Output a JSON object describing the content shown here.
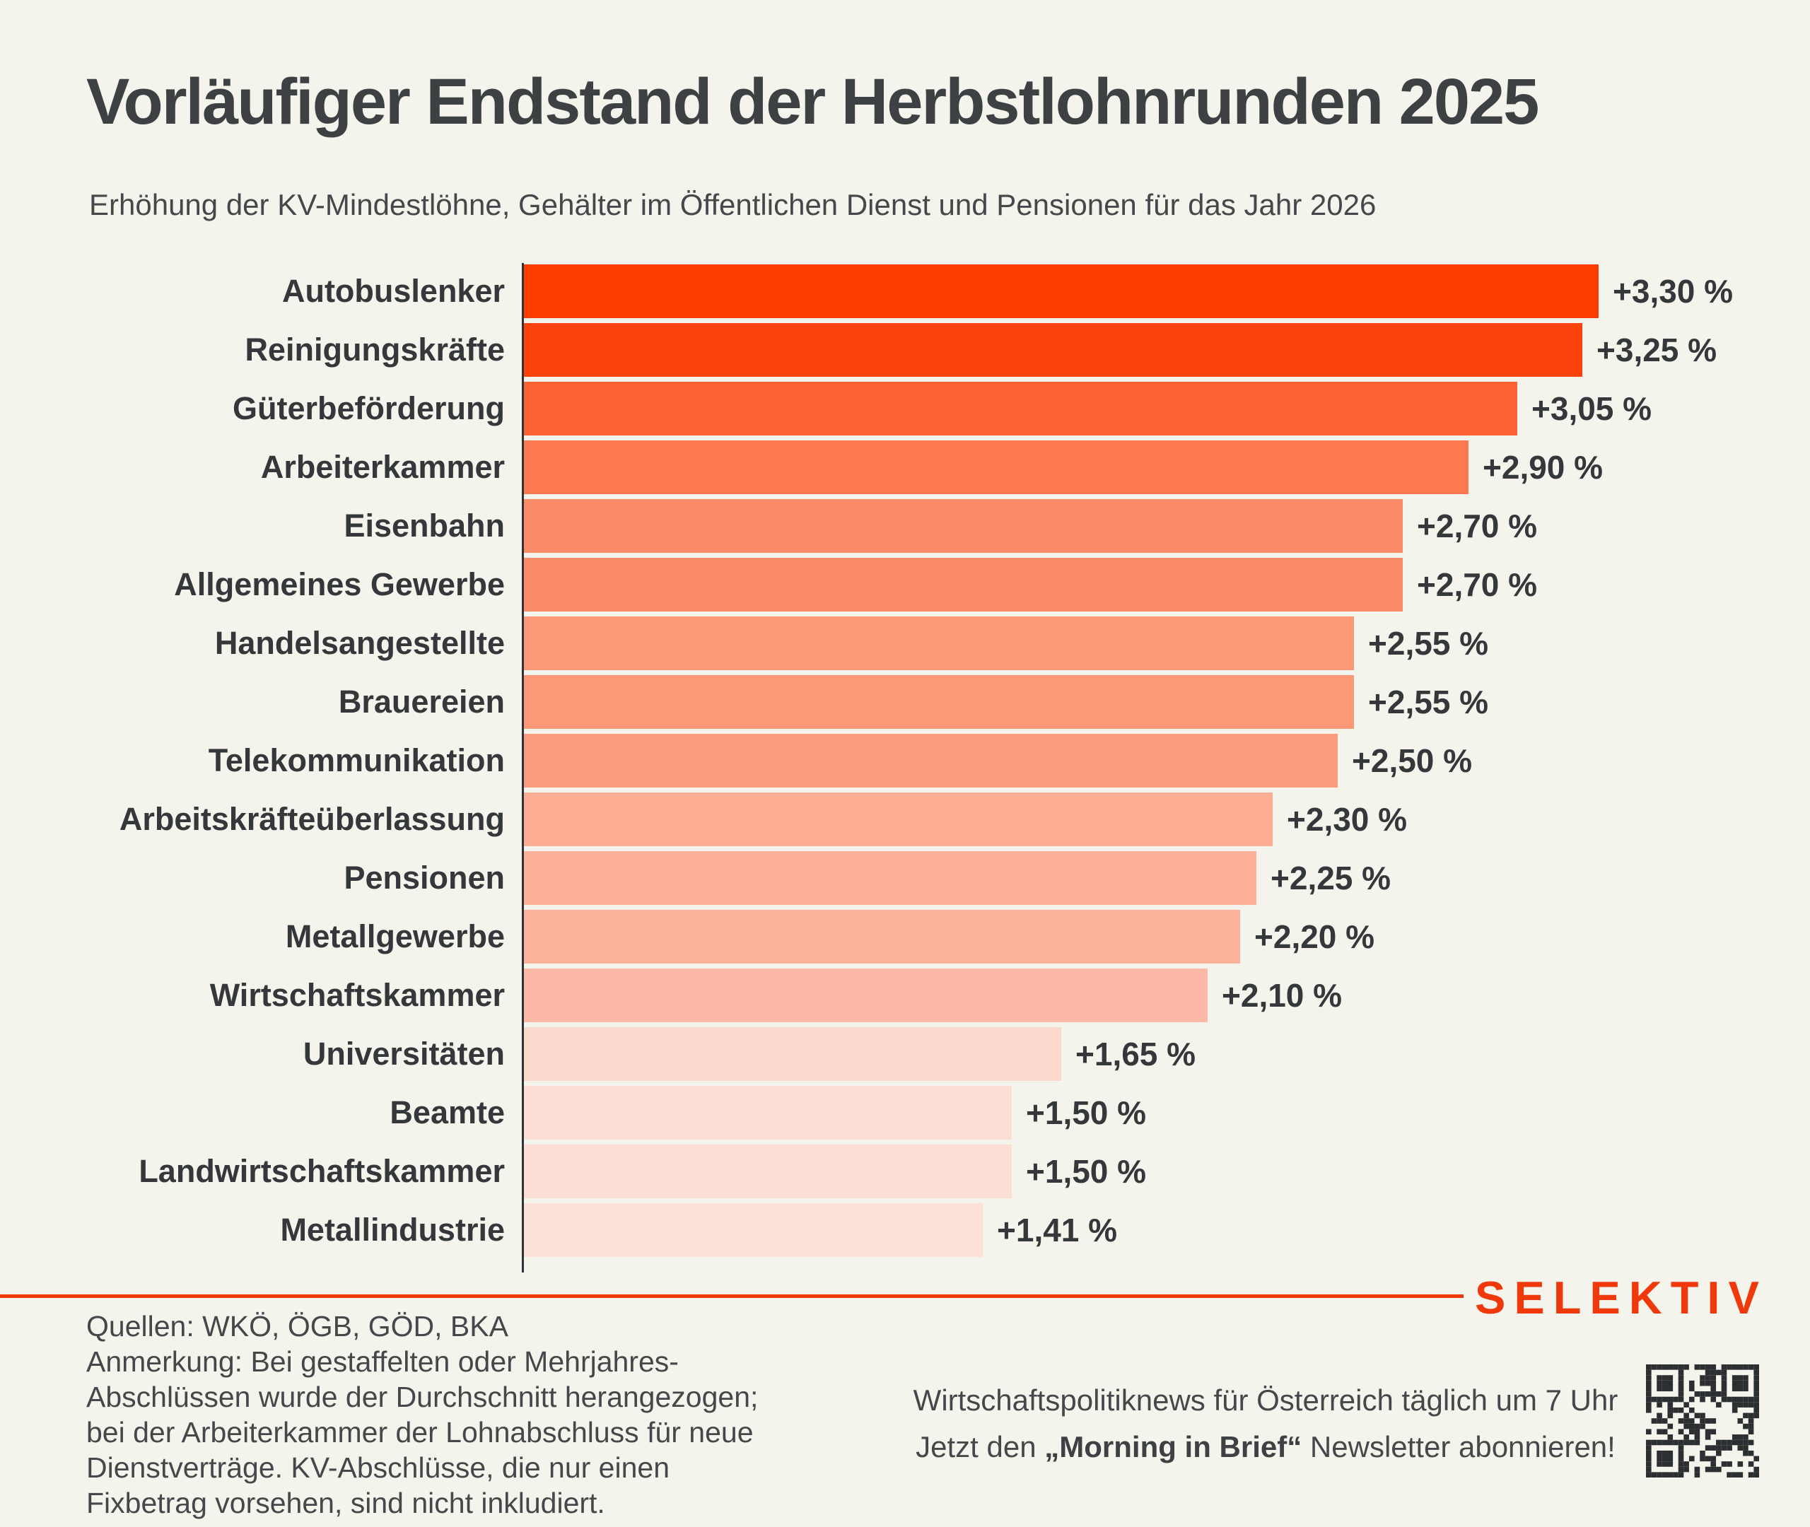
{
  "page": {
    "background_color": "#f5f4ec",
    "text_color": "#3f4347",
    "accent_color": "#f0390b"
  },
  "header": {
    "title": "Vorläufiger Endstand der Herbstlohnrunden 2025",
    "subtitle": "Erhöhung der KV-Mindestlöhne, Gehälter im Öffentlichen Dienst und Pensionen für das Jahr 2026"
  },
  "chart_data": {
    "type": "bar",
    "orientation": "horizontal",
    "title": "Vorläufiger Endstand der Herbstlohnrunden 2025",
    "subtitle": "Erhöhung der KV-Mindestlöhne, Gehälter im Öffentlichen Dienst und Pensionen für das Jahr 2026",
    "xlabel": "",
    "ylabel": "",
    "xlim": [
      0,
      3.3
    ],
    "grid": false,
    "value_labels_at_bar_end": true,
    "categories": [
      "Autobuslenker",
      "Reinigungskräfte",
      "Güterbeförderung",
      "Arbeiterkammer",
      "Eisenbahn",
      "Allgemeines Gewerbe",
      "Handelsangestellte",
      "Brauereien",
      "Telekommunikation",
      "Arbeitskräfteüberlassung",
      "Pensionen",
      "Metallgewerbe",
      "Wirtschaftskammer",
      "Universitäten",
      "Beamte",
      "Landwirtschaftskammer",
      "Metallindustrie"
    ],
    "values": [
      3.3,
      3.25,
      3.05,
      2.9,
      2.7,
      2.7,
      2.55,
      2.55,
      2.5,
      2.3,
      2.25,
      2.2,
      2.1,
      1.65,
      1.5,
      1.5,
      1.41
    ],
    "labels": [
      "+3,30 %",
      "+3,25 %",
      "+3,05 %",
      "+2,90 %",
      "+2,70 %",
      "+2,70 %",
      "+2,55 %",
      "+2,55 %",
      "+2,50 %",
      "+2,30 %",
      "+2,25 %",
      "+2,20 %",
      "+2,10 %",
      "+1,65 %",
      "+1,50 %",
      "+1,50 %",
      "+1,41 %"
    ],
    "bar_colors": [
      "#fb3b00",
      "#fb430b",
      "#fa6232",
      "#fb7850",
      "#fb8a66",
      "#fb8a66",
      "#fb9878",
      "#fb9878",
      "#fb9c7e",
      "#fcad93",
      "#fcb098",
      "#fcb39c",
      "#fcbaa6",
      "#fbd9cc",
      "#fcded4",
      "#fcded4",
      "#fce1d8"
    ]
  },
  "footer": {
    "note_lines": [
      "Quellen: WKÖ, ÖGB, GÖD, BKA",
      "Anmerkung: Bei gestaffelten oder Mehrjahres-",
      "Abschlüssen wurde der Durchschnitt herangezogen;",
      "bei der Arbeiterkammer der Lohnabschluss für neue",
      "Dienstverträge. KV-Abschlüsse, die nur einen",
      "Fixbetrag vorsehen, sind nicht inkludiert."
    ],
    "newsletter": {
      "line1": "Wirtschaftspolitiknews für Österreich täglich um 7 Uhr",
      "line2_prefix": "Jetzt den ",
      "line2_bold": "„Morning in Brief“",
      "line2_suffix": " Newsletter abonnieren!"
    },
    "logo_text": "SELEKTIV",
    "icons": {
      "qr": "qr-code"
    }
  }
}
